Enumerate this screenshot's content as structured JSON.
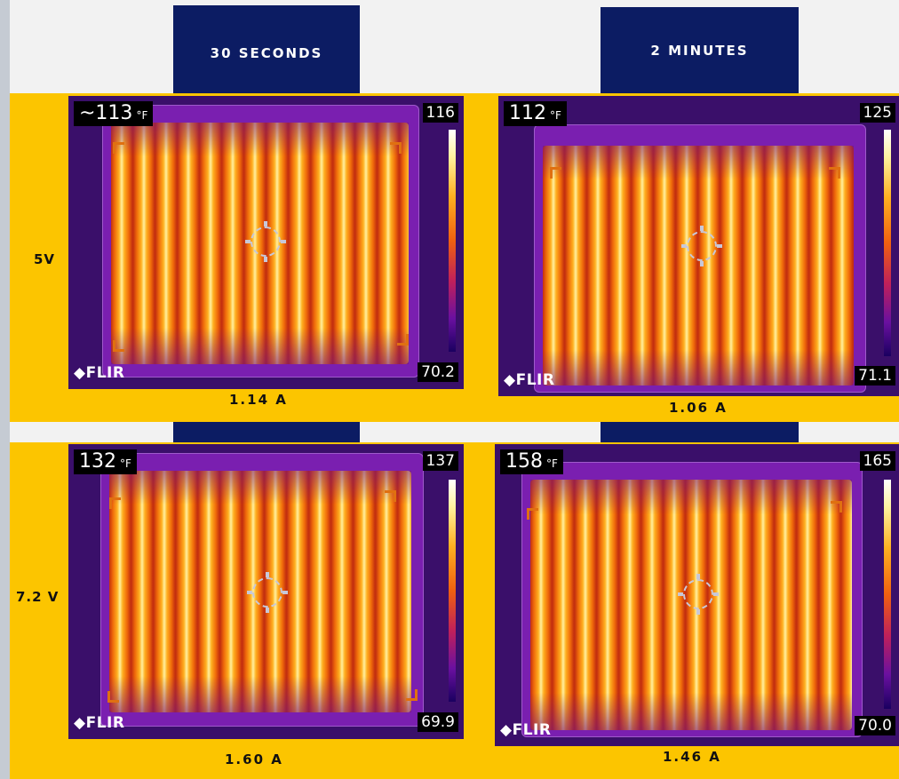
{
  "columns": [
    {
      "label": "30 SECONDS"
    },
    {
      "label": "2 MINUTES"
    }
  ],
  "rows": [
    {
      "label": "5V"
    },
    {
      "label": "7.2 V"
    }
  ],
  "panels": [
    {
      "temperature": "~113",
      "unit": "°F",
      "scale_max": "116",
      "scale_min": "70.2",
      "logo": "FLIR",
      "current": "1.14 A"
    },
    {
      "temperature": "112",
      "unit": "°F",
      "scale_max": "125",
      "scale_min": "71.1",
      "logo": "FLIR",
      "current": "1.06 A"
    },
    {
      "temperature": "132",
      "unit": "°F",
      "scale_max": "137",
      "scale_min": "69.9",
      "logo": "FLIR",
      "current": "1.60 A"
    },
    {
      "temperature": "158",
      "unit": "°F",
      "scale_max": "165",
      "scale_min": "70.0",
      "logo": "FLIR",
      "current": "1.46 A"
    }
  ],
  "colors": {
    "band": "#fcc500",
    "tab": "#0c1c63",
    "background": "#f2f2f2"
  }
}
